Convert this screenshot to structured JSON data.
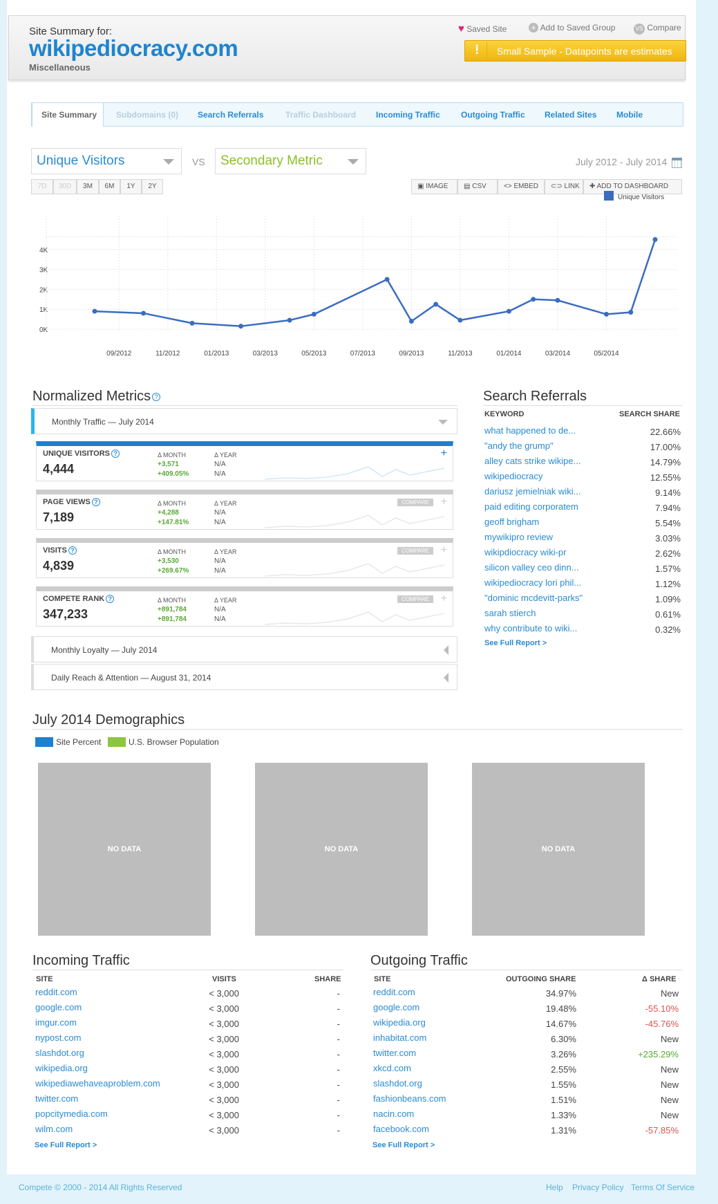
{
  "header": {
    "summary_label": "Site Summary for:",
    "domain": "wikipediocracy.com",
    "category": "Miscellaneous",
    "saved_site": "Saved Site",
    "add_group": "Add to Saved Group",
    "compare": "Compare",
    "sample_warning": "Small Sample - Datapoints are estimates"
  },
  "tabs": [
    "Site Summary",
    "Subdomains (0)",
    "Search Referrals",
    "Traffic Dashboard",
    "Incoming Traffic",
    "Outgoing Traffic",
    "Related Sites",
    "Mobile"
  ],
  "metric_select": {
    "primary": "Unique Visitors",
    "vs": "VS",
    "secondary": "Secondary Metric",
    "date_range": "July 2012 - July 2014"
  },
  "ranges": [
    "7D",
    "30D",
    "3M",
    "6M",
    "1Y",
    "2Y"
  ],
  "tools": [
    "IMAGE",
    "CSV",
    "<> EMBED",
    "LINK",
    "ADD TO DASHBOARD"
  ],
  "colors": {
    "line": "#3b6cc0",
    "accent": "#2a8bd0",
    "green": "#5aa832",
    "red": "#d9534f",
    "warning": "#f7c21a"
  },
  "chart_data": {
    "type": "line",
    "series": [
      {
        "name": "Unique Visitors",
        "values": [
          900,
          800,
          300,
          150,
          450,
          750,
          2500,
          400,
          1250,
          450,
          900,
          1500,
          1450,
          750,
          850,
          4500
        ]
      }
    ],
    "x": [
      "08/2012",
      "10/2012",
      "12/2012",
      "02/2013",
      "04/2013",
      "05/2013",
      "08/2013",
      "09/2013",
      "10/2013",
      "11/2013",
      "01/2014",
      "02/2014",
      "03/2014",
      "05/2014",
      "06/2014",
      "07/2014"
    ],
    "x_tick_labels": [
      "09/2012",
      "11/2012",
      "01/2013",
      "03/2013",
      "05/2013",
      "07/2013",
      "09/2013",
      "11/2013",
      "01/2014",
      "03/2014",
      "05/2014"
    ],
    "y_tick_labels": [
      "0K",
      "1K",
      "2K",
      "3K",
      "4K"
    ],
    "ylim": [
      0,
      5000
    ],
    "legend": "top-right",
    "grid": true
  },
  "normalized": {
    "title": "Normalized Metrics",
    "dropdown": "Monthly Traffic — July 2014",
    "month_label": "Δ MONTH",
    "year_label": "Δ YEAR",
    "compare": "COMPARE",
    "metrics": [
      {
        "name": "UNIQUE VISITORS",
        "value": "4,444",
        "m1": "+3,571",
        "m2": "+409.05%",
        "y1": "N/A",
        "y2": "N/A"
      },
      {
        "name": "PAGE VIEWS",
        "value": "7,189",
        "m1": "+4,288",
        "m2": "+147.81%",
        "y1": "N/A",
        "y2": "N/A"
      },
      {
        "name": "VISITS",
        "value": "4,839",
        "m1": "+3,530",
        "m2": "+269.67%",
        "y1": "N/A",
        "y2": "N/A"
      },
      {
        "name": "COMPETE RANK",
        "value": "347,233",
        "m1": "+891,784",
        "m2": "+891,784",
        "y1": "N/A",
        "y2": "N/A"
      }
    ],
    "loyalty": "Monthly Loyalty — July 2014",
    "reach": "Daily Reach & Attention — August 31, 2014"
  },
  "search": {
    "title": "Search Referrals",
    "col_keyword": "KEYWORD",
    "col_share": "SEARCH SHARE",
    "rows": [
      {
        "k": "what happened to de...",
        "s": "22.66%"
      },
      {
        "k": "\"andy the grump\"",
        "s": "17.00%"
      },
      {
        "k": "alley cats strike wikipe...",
        "s": "14.79%"
      },
      {
        "k": "wikipediocracy",
        "s": "12.55%"
      },
      {
        "k": "dariusz jemielniak wiki...",
        "s": "9.14%"
      },
      {
        "k": "paid editing corporatem",
        "s": "7.94%"
      },
      {
        "k": "geoff brigham",
        "s": "5.54%"
      },
      {
        "k": "mywikipro review",
        "s": "3.03%"
      },
      {
        "k": "wikipdiocracy wiki-pr",
        "s": "2.62%"
      },
      {
        "k": "silicon valley ceo dinn...",
        "s": "1.57%"
      },
      {
        "k": "wikipediocracy lori phil...",
        "s": "1.12%"
      },
      {
        "k": "\"dominic mcdevitt-parks\"",
        "s": "1.09%"
      },
      {
        "k": "sarah stierch",
        "s": "0.61%"
      },
      {
        "k": "why contribute to wiki...",
        "s": "0.32%"
      }
    ],
    "full": "See Full Report >"
  },
  "demographics": {
    "title": "July 2014 Demographics",
    "legend_site": "Site Percent",
    "legend_us": "U.S. Browser Population",
    "no_data": "NO DATA"
  },
  "incoming": {
    "title": "Incoming Traffic",
    "col_site": "SITE",
    "col_visits": "VISITS",
    "col_share": "SHARE",
    "rows": [
      {
        "site": "reddit.com",
        "visits": "< 3,000",
        "share": "-"
      },
      {
        "site": "google.com",
        "visits": "< 3,000",
        "share": "-"
      },
      {
        "site": "imgur.com",
        "visits": "< 3,000",
        "share": "-"
      },
      {
        "site": "nypost.com",
        "visits": "< 3,000",
        "share": "-"
      },
      {
        "site": "slashdot.org",
        "visits": "< 3,000",
        "share": "-"
      },
      {
        "site": "wikipedia.org",
        "visits": "< 3,000",
        "share": "-"
      },
      {
        "site": "wikipediawehaveaproblem.com",
        "visits": "< 3,000",
        "share": "-"
      },
      {
        "site": "twitter.com",
        "visits": "< 3,000",
        "share": "-"
      },
      {
        "site": "popcitymedia.com",
        "visits": "< 3,000",
        "share": "-"
      },
      {
        "site": "wilm.com",
        "visits": "< 3,000",
        "share": "-"
      }
    ],
    "full": "See Full Report >"
  },
  "outgoing": {
    "title": "Outgoing Traffic",
    "col_site": "SITE",
    "col_share": "OUTGOING SHARE",
    "col_delta": "Δ SHARE",
    "rows": [
      {
        "site": "reddit.com",
        "share": "34.97%",
        "delta": "New",
        "dc": "n"
      },
      {
        "site": "google.com",
        "share": "19.48%",
        "delta": "-55.10%",
        "dc": "r"
      },
      {
        "site": "wikipedia.org",
        "share": "14.67%",
        "delta": "-45.76%",
        "dc": "r"
      },
      {
        "site": "inhabitat.com",
        "share": "6.30%",
        "delta": "New",
        "dc": "n"
      },
      {
        "site": "twitter.com",
        "share": "3.26%",
        "delta": "+235.29%",
        "dc": "g"
      },
      {
        "site": "xkcd.com",
        "share": "2.55%",
        "delta": "New",
        "dc": "n"
      },
      {
        "site": "slashdot.org",
        "share": "1.55%",
        "delta": "New",
        "dc": "n"
      },
      {
        "site": "fashionbeans.com",
        "share": "1.51%",
        "delta": "New",
        "dc": "n"
      },
      {
        "site": "nacin.com",
        "share": "1.33%",
        "delta": "New",
        "dc": "n"
      },
      {
        "site": "facebook.com",
        "share": "1.31%",
        "delta": "-57.85%",
        "dc": "r"
      }
    ],
    "full": "See Full Report >"
  },
  "footer": {
    "copyright": "Compete © 2000 - 2014 All Rights Reserved",
    "help": "Help",
    "privacy": "Privacy Policy",
    "terms": "Terms Of Service"
  }
}
